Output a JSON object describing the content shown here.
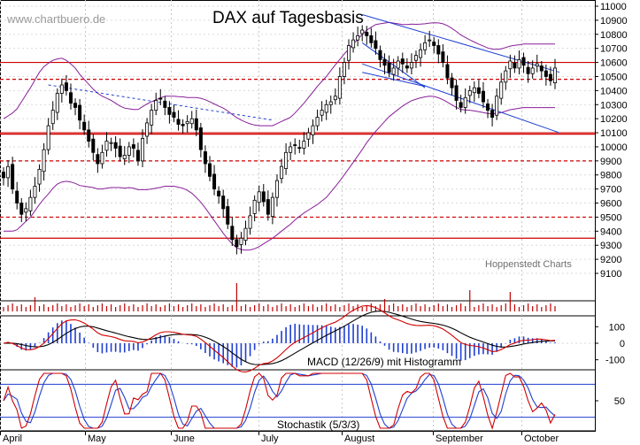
{
  "chart_data": {
    "type": "candlestick",
    "site": "www.chartbuero.de",
    "title": "DAX auf Tagesbasis",
    "credit": "Hoppenstedt Charts",
    "price_axis": {
      "min": 9100,
      "max": 11000,
      "ticks": [
        "9100",
        "9200",
        "9300",
        "9400",
        "9500",
        "9600",
        "9700",
        "9800",
        "9900",
        "10000",
        "10100",
        "10200",
        "10300",
        "10400",
        "10500",
        "10600",
        "10700",
        "10800",
        "10900",
        "11000"
      ]
    },
    "months": [
      "April",
      "May",
      "June",
      "July",
      "August",
      "September",
      "October"
    ],
    "horizontal_lines": [
      {
        "value": 10600,
        "style": "solid",
        "color": "#d00000"
      },
      {
        "value": 10480,
        "style": "dashed",
        "color": "#d00000"
      },
      {
        "value": 10100,
        "style": "solid",
        "color": "#d00000"
      },
      {
        "value": 10090,
        "style": "solid",
        "color": "#d00000"
      },
      {
        "value": 9900,
        "style": "dashed",
        "color": "#d00000"
      },
      {
        "value": 9500,
        "style": "dashed",
        "color": "#d00000"
      },
      {
        "value": 9350,
        "style": "solid",
        "color": "#d00000"
      }
    ],
    "closes": [
      9780,
      9860,
      9700,
      9600,
      9520,
      9560,
      9640,
      9720,
      9840,
      9980,
      10150,
      10260,
      10380,
      10440,
      10400,
      10310,
      10280,
      10190,
      10120,
      10040,
      9960,
      9880,
      9960,
      10040,
      10030,
      9990,
      9930,
      9940,
      10000,
      9990,
      9900,
      10060,
      10170,
      10260,
      10330,
      10340,
      10280,
      10230,
      10210,
      10160,
      10150,
      10180,
      10200,
      10120,
      9980,
      9880,
      9790,
      9700,
      9650,
      9560,
      9450,
      9340,
      9290,
      9350,
      9420,
      9510,
      9620,
      9680,
      9610,
      9520,
      9640,
      9760,
      9860,
      9960,
      10000,
      10010,
      9990,
      10040,
      10100,
      10150,
      10210,
      10260,
      10300,
      10320,
      10360,
      10500,
      10600,
      10720,
      10760,
      10790,
      10830,
      10790,
      10740,
      10700,
      10620,
      10580,
      10530,
      10560,
      10610,
      10590,
      10560,
      10600,
      10650,
      10690,
      10740,
      10760,
      10720,
      10660,
      10600,
      10490,
      10420,
      10330,
      10280,
      10350,
      10400,
      10420,
      10380,
      10320,
      10260,
      10210,
      10360,
      10460,
      10540,
      10610,
      10560,
      10620,
      10580,
      10520,
      10560,
      10590,
      10540,
      10500,
      10470,
      10560
    ],
    "bollinger": {
      "mid": [
        9800,
        9810,
        9820,
        9840,
        9880,
        9920,
        9960,
        10010,
        10060,
        10100,
        10130,
        10160,
        10180,
        10190,
        10185,
        10170,
        10150,
        10120,
        10100,
        10080,
        10060,
        10040,
        10030,
        10025,
        10020,
        10010,
        10000,
        9990,
        9990,
        9985,
        9980,
        9990,
        10000,
        10010,
        10020,
        10030,
        10040,
        10040,
        10040,
        10035,
        10030,
        10020,
        10010,
        9995,
        9975,
        9950,
        9920,
        9890,
        9860,
        9830,
        9800,
        9770,
        9745,
        9730,
        9720,
        9715,
        9715,
        9720,
        9730,
        9740,
        9750,
        9770,
        9790,
        9810,
        9830,
        9860,
        9890,
        9920,
        9950,
        9980,
        10010,
        10040,
        10070,
        10110,
        10150,
        10190,
        10230,
        10270,
        10310,
        10350,
        10390,
        10430,
        10460,
        10490,
        10510,
        10530,
        10550,
        10560,
        10570,
        10580,
        10590,
        10600,
        10605,
        10610,
        10615,
        10620,
        10620,
        10615,
        10605,
        10590,
        10570,
        10550,
        10530,
        10520,
        10510,
        10500,
        10490,
        10480,
        10470,
        10465,
        10465,
        10470,
        10480,
        10490,
        10495,
        10500,
        10505,
        10505,
        10505,
        10505,
        10505,
        10505,
        10505,
        10505
      ],
      "width": [
        400,
        410,
        420,
        430,
        440,
        450,
        460,
        465,
        470,
        470,
        465,
        455,
        445,
        440,
        430,
        420,
        410,
        395,
        380,
        365,
        350,
        340,
        330,
        320,
        310,
        300,
        290,
        285,
        280,
        280,
        285,
        295,
        305,
        310,
        315,
        318,
        320,
        320,
        320,
        322,
        325,
        330,
        340,
        355,
        370,
        385,
        400,
        415,
        430,
        445,
        455,
        460,
        462,
        460,
        455,
        448,
        440,
        430,
        420,
        410,
        400,
        395,
        390,
        385,
        380,
        380,
        385,
        390,
        400,
        410,
        420,
        425,
        430,
        432,
        433,
        432,
        430,
        425,
        420,
        415,
        410,
        400,
        390,
        380,
        365,
        350,
        335,
        320,
        305,
        290,
        280,
        272,
        266,
        262,
        260,
        260,
        262,
        266,
        270,
        272,
        272,
        270,
        265,
        258,
        250,
        245,
        240,
        236,
        233,
        230,
        228,
        227,
        226,
        226,
        226,
        226,
        226,
        226,
        226,
        226,
        226,
        226,
        226,
        226
      ]
    },
    "trendlines": [
      {
        "from": [
          10,
          10440
        ],
        "to": [
          60,
          10190
        ],
        "color": "#1f3fd1",
        "style": "dashed"
      },
      {
        "from": [
          80,
          10940
        ],
        "to": [
          124,
          10530
        ],
        "color": "#1f3fd1",
        "style": "solid"
      },
      {
        "from": [
          80,
          10590
        ],
        "to": [
          124,
          10100
        ],
        "color": "#1f3fd1",
        "style": "solid"
      },
      {
        "from": [
          80,
          10740
        ],
        "to": [
          94,
          10420
        ],
        "color": "#1f3fd1",
        "style": "solid"
      },
      {
        "from": [
          80,
          10530
        ],
        "to": [
          94,
          10430
        ],
        "color": "#1f3fd1",
        "style": "solid"
      }
    ],
    "volume_spikes": [
      {
        "index": 52,
        "height": 32
      },
      {
        "index": 104,
        "height": 24
      },
      {
        "index": 113,
        "height": 22
      },
      {
        "index": 7,
        "height": 16
      },
      {
        "index": 85,
        "height": 14
      }
    ],
    "macd": {
      "label": "MACD (12/26/9) mit Histogramm",
      "axis_min": -150,
      "axis_max": 150,
      "ticks": [
        "100",
        "0",
        "-100"
      ],
      "line_color": "#d00000",
      "signal_color": "#000000",
      "hist_color": "#1f3fd1"
    },
    "stochastic": {
      "label": "Stochastik (5/3/3)",
      "ticks": [
        "50"
      ],
      "levels": [
        80,
        20
      ],
      "k_color": "#d00000",
      "d_color": "#1f3fd1"
    }
  }
}
